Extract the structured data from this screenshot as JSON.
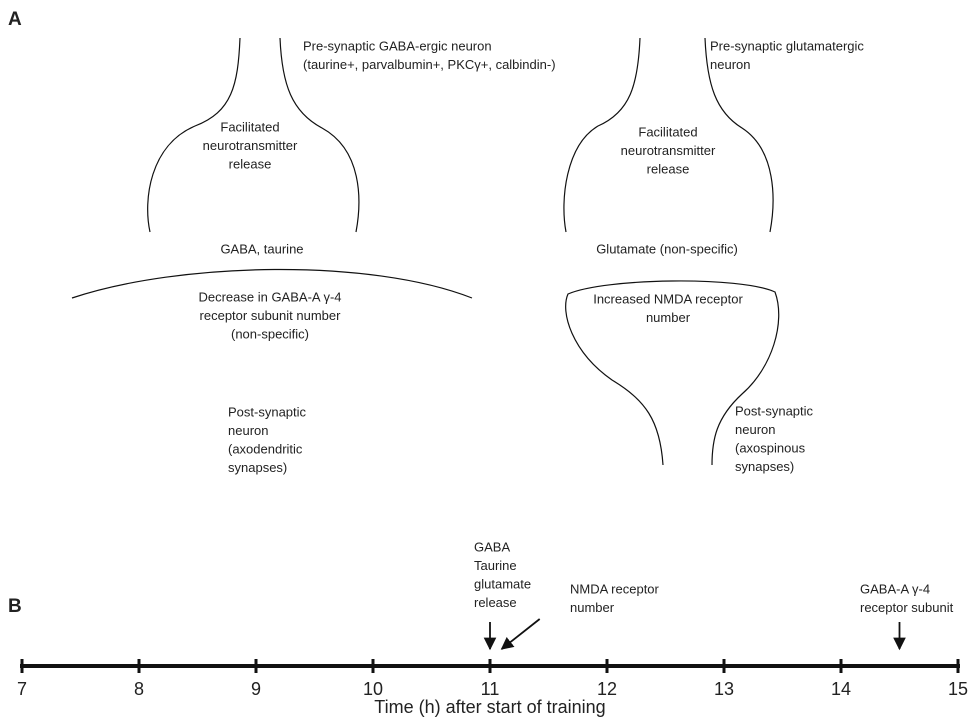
{
  "panel_a": {
    "label": "A",
    "left": {
      "presynaptic": [
        "Pre-synaptic GABA-ergic neuron",
        "(taurine+, parvalbumin+, PKCγ+, calbindin-)"
      ],
      "terminal": [
        "Facilitated",
        "neurotransmitter",
        "release"
      ],
      "transmitters": [
        "GABA, taurine"
      ],
      "receptor": [
        "Decrease in GABA-A γ-4",
        "receptor subunit number",
        "(non-specific)"
      ],
      "postsynaptic": [
        "Post-synaptic",
        "neuron",
        "(axodendritic",
        "synapses)"
      ]
    },
    "right": {
      "presynaptic": [
        "Pre-synaptic glutamatergic",
        "neuron"
      ],
      "terminal": [
        "Facilitated",
        "neurotransmitter",
        "release"
      ],
      "transmitters": [
        "Glutamate (non-specific)"
      ],
      "receptor": [
        "Increased NMDA receptor",
        "number"
      ],
      "postsynaptic": [
        "Post-synaptic",
        "neuron",
        "(axospinous",
        "synapses)"
      ]
    }
  },
  "panel_b": {
    "label": "B",
    "xlim": [
      7,
      15
    ],
    "ticks": [
      7,
      8,
      9,
      10,
      11,
      12,
      13,
      14,
      15
    ],
    "axis_label": "Time (h) after start of training",
    "events": [
      {
        "label": [
          "GABA",
          "Taurine",
          "glutamate",
          "release"
        ],
        "time": 11
      },
      {
        "label": [
          "NMDA receptor",
          "number"
        ],
        "time": 11.1
      },
      {
        "label": [
          "GABA-A  γ-4",
          "receptor subunit"
        ],
        "time": 14.5
      }
    ]
  }
}
